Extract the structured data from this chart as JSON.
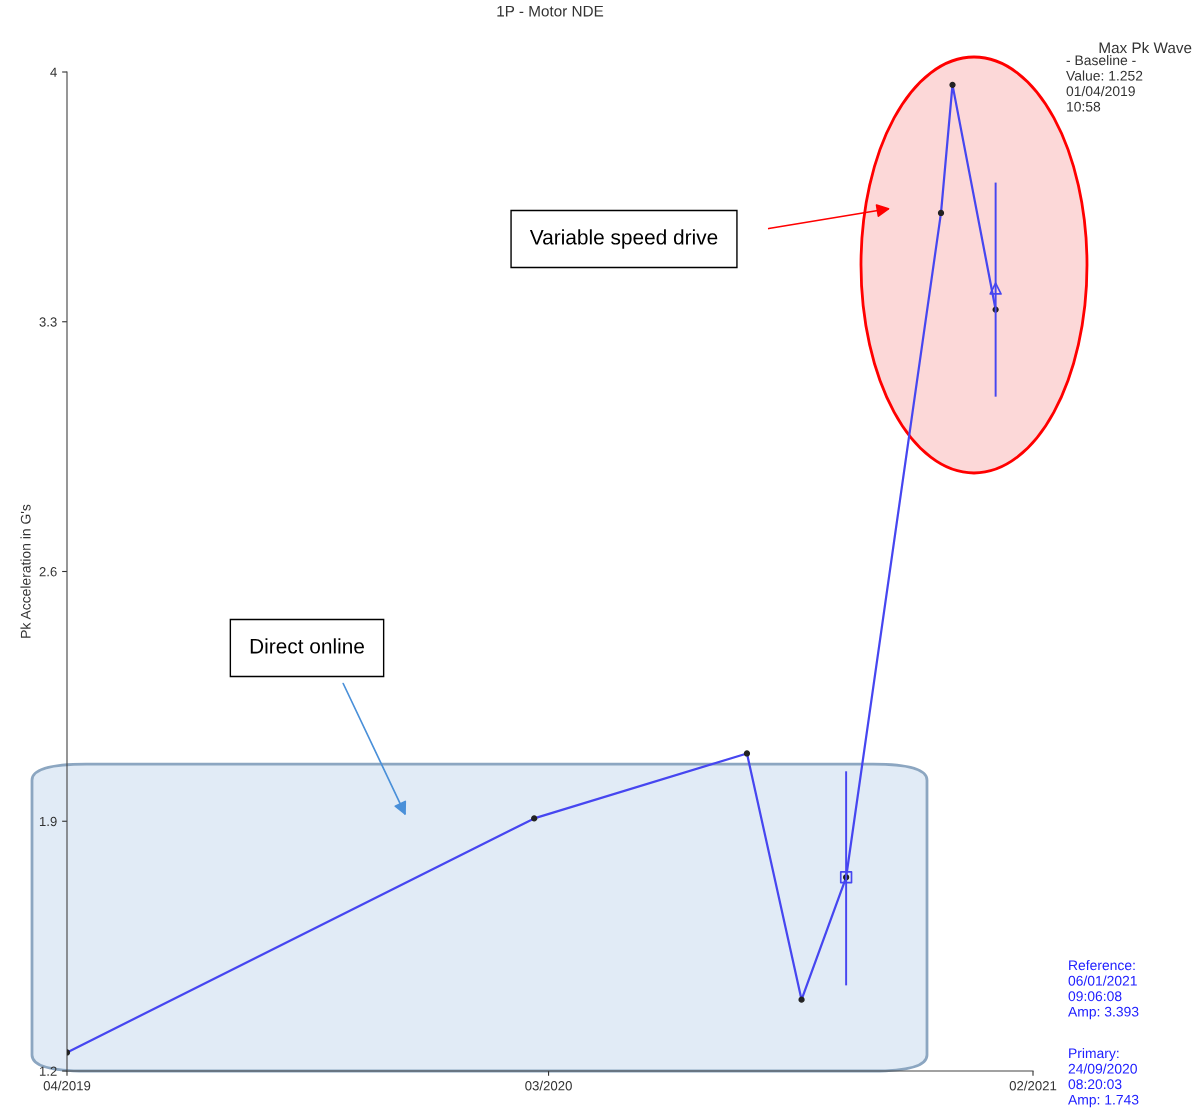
{
  "chart_data": {
    "type": "line",
    "title": "1P - Motor NDE",
    "ylabel": "Pk Acceleration in G's",
    "series": [
      {
        "name": null,
        "type": "line",
        "color": "#4646f0",
        "marker": "circle",
        "x": [
          "2019-04-01",
          "2020-02-20",
          "2020-07-17",
          "2020-08-24",
          "2020-09-24",
          "2020-11-29",
          "2020-12-07",
          "2021-01-06"
        ],
        "values": [
          1.252,
          1.908,
          2.09,
          1.4,
          1.743,
          3.605,
          3.964,
          3.334
        ]
      },
      {
        "name": null,
        "type": "scatter",
        "color": "#4646f0",
        "marker": "square",
        "x": [
          "2020-09-24"
        ],
        "values": [
          1.743
        ],
        "errors": [
          [
            1.44,
            2.04
          ]
        ]
      },
      {
        "name": null,
        "type": "scatter",
        "color": "#4646f0",
        "marker": "triangle",
        "x": [
          "2021-01-06"
        ],
        "values": [
          3.393
        ],
        "errors": [
          [
            3.09,
            3.69
          ]
        ]
      }
    ],
    "xlim": [
      "2019-04-01",
      "2021-02-01"
    ],
    "xticks": [
      {
        "value": "2019-04-01",
        "label": "04/2019"
      },
      {
        "value": "2020-03-01",
        "label": "03/2020"
      },
      {
        "value": "2021-02-01",
        "label": "02/2021"
      }
    ],
    "bands": [
      {
        "axis": "y",
        "from": 1.2,
        "to": 2.06,
        "color": "#c9dcef"
      }
    ],
    "ylim": [
      1.2,
      4
    ],
    "yticks": [
      1.2,
      1.9,
      2.6,
      3.3,
      4
    ],
    "grid": false,
    "legend": false,
    "annotations": [
      "Max Pk Wave",
      "- Baseline -\nValue: 1.252\n01/04/2019\n10:58",
      "Reference:\n06/01/2021\n09:06:08\nAmp: 3.393",
      "Primary:\n24/09/2020\n08:20:03\nAmp: 1.743",
      "Variable speed drive",
      "Direct online"
    ]
  }
}
